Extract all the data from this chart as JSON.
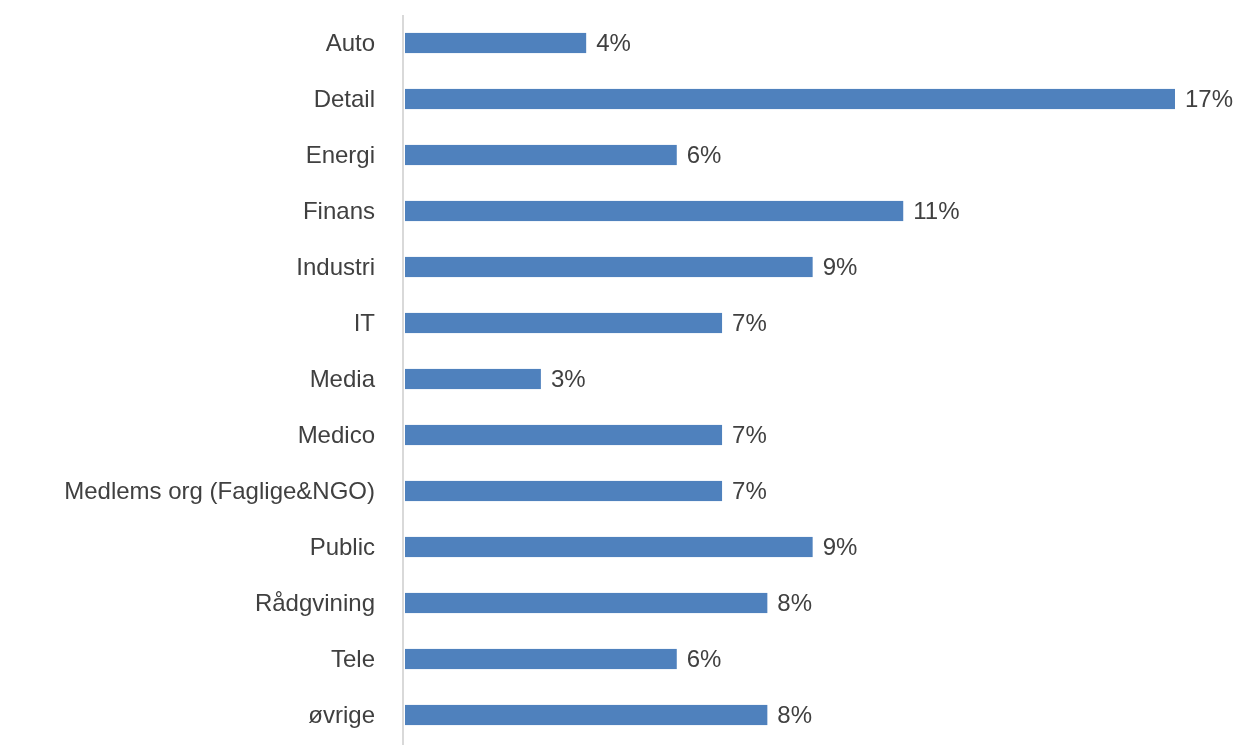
{
  "chart_data": {
    "type": "bar",
    "orientation": "horizontal",
    "categories": [
      "Auto",
      "Detail",
      "Energi",
      "Finans",
      "Industri",
      "IT",
      "Media",
      "Medico",
      "Medlems org (Faglige&NGO)",
      "Public",
      "Rådgvining",
      "Tele",
      "øvrige"
    ],
    "values": [
      4,
      17,
      6,
      11,
      9,
      7,
      3,
      7,
      7,
      9,
      8,
      6,
      8
    ],
    "value_labels": [
      "4%",
      "17%",
      "6%",
      "11%",
      "9%",
      "7%",
      "3%",
      "7%",
      "7%",
      "9%",
      "8%",
      "6%",
      "8%"
    ],
    "color": "#4f81bd"
  }
}
